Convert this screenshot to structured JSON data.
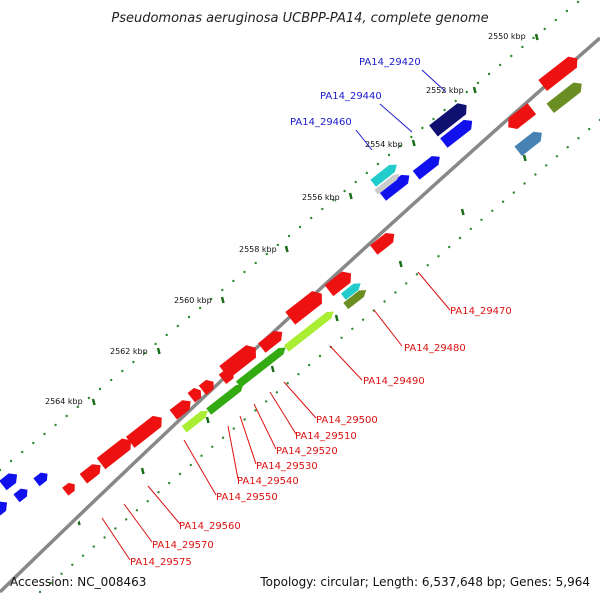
{
  "title": "Pseudomonas aeruginosa UCBPP-PA14, complete genome",
  "footer": {
    "accession": "Accession: NC_008463",
    "summary": "Topology: circular; Length: 6,537,648 bp; Genes: 5,964"
  },
  "ticks": [
    "2550 kbp",
    "2552 kbp",
    "2554 kbp",
    "2556 kbp",
    "2558 kbp",
    "2560 kbp",
    "2562 kbp",
    "2564 kbp"
  ],
  "gene_labels": [
    {
      "text": "PA14_29420",
      "color": "#1a1acc"
    },
    {
      "text": "PA14_29440",
      "color": "#1a1acc"
    },
    {
      "text": "PA14_29460",
      "color": "#1a1acc"
    },
    {
      "text": "PA14_29470",
      "color": "#dd1111"
    },
    {
      "text": "PA14_29480",
      "color": "#dd1111"
    },
    {
      "text": "PA14_29490",
      "color": "#dd1111"
    },
    {
      "text": "PA14_29500",
      "color": "#dd1111"
    },
    {
      "text": "PA14_29510",
      "color": "#dd1111"
    },
    {
      "text": "PA14_29520",
      "color": "#dd1111"
    },
    {
      "text": "PA14_29530",
      "color": "#dd1111"
    },
    {
      "text": "PA14_29540",
      "color": "#dd1111"
    },
    {
      "text": "PA14_29550",
      "color": "#dd1111"
    },
    {
      "text": "PA14_29560",
      "color": "#dd1111"
    },
    {
      "text": "PA14_29570",
      "color": "#dd1111"
    },
    {
      "text": "PA14_29575",
      "color": "#dd1111"
    }
  ],
  "colors": {
    "backbone": "#888888",
    "tick_dot": "#2e8b2e",
    "red": "#ee1111",
    "blue": "#1111ee",
    "navy": "#101070",
    "steelblue": "#4682b4",
    "cyan": "#22cccc",
    "lightgray": "#cccccc",
    "olive": "#6b8e23",
    "green": "#33aa11",
    "lime": "#aaee33"
  }
}
